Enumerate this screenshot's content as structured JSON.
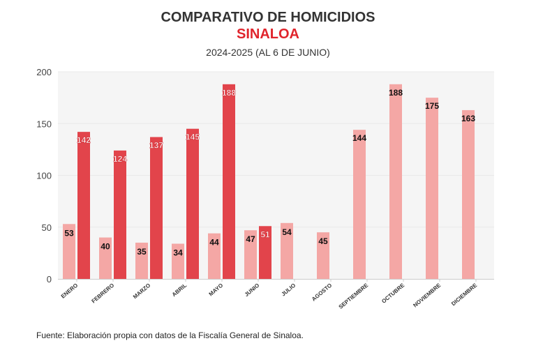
{
  "chart_data": {
    "type": "bar",
    "title": "COMPARATIVO DE HOMICIDIOS",
    "subtitle": "SINALOA",
    "date_note": "2024-2025 (AL 6 DE JUNIO)",
    "categories": [
      "ENERO",
      "FEBRERO",
      "MARZO",
      "ABRIL",
      "MAYO",
      "JUNIO",
      "JULIO",
      "AGOSTO",
      "SEPTIEMBRE",
      "OCTUBRE",
      "NOVIEMBRE",
      "DICIEMBRE"
    ],
    "series": [
      {
        "name": "2024",
        "color": "#f4a7a5",
        "values": [
          53,
          40,
          35,
          34,
          44,
          47,
          54,
          45,
          144,
          188,
          175,
          163
        ]
      },
      {
        "name": "2025",
        "color": "#e2444b",
        "values": [
          142,
          124,
          137,
          145,
          188,
          51,
          null,
          null,
          null,
          null,
          null,
          null
        ]
      }
    ],
    "ylim": [
      0,
      200
    ],
    "yticks": [
      0,
      50,
      100,
      150,
      200
    ],
    "xlabel": "",
    "ylabel": "",
    "grid": true,
    "source": "Fuente: Elaboración propia con datos de la Fiscalía General de Sinaloa."
  }
}
